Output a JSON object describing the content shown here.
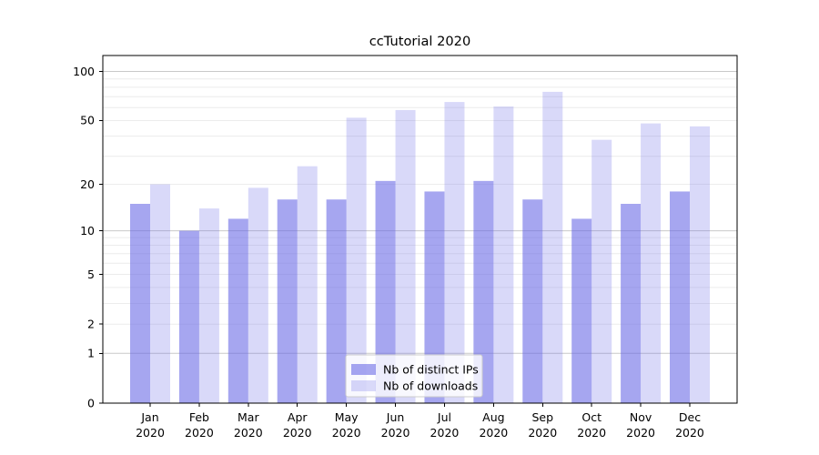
{
  "figure": {
    "title": "ccTutorial 2020"
  },
  "chart_data": {
    "type": "bar",
    "title": "ccTutorial 2020",
    "categories": [
      "Jan",
      "Feb",
      "Mar",
      "Apr",
      "May",
      "Jun",
      "Jul",
      "Aug",
      "Sep",
      "Oct",
      "Nov",
      "Dec"
    ],
    "category_sublabel": "2020",
    "series": [
      {
        "name": "Nb of distinct IPs",
        "color": "#6666e6",
        "opacity": 0.58,
        "values": [
          15,
          10,
          12,
          16,
          16,
          21,
          18,
          21,
          16,
          12,
          15,
          18
        ]
      },
      {
        "name": "Nb of downloads",
        "color": "#6666e6",
        "opacity": 0.25,
        "values": [
          20,
          14,
          19,
          26,
          52,
          58,
          65,
          61,
          75,
          38,
          48,
          46
        ]
      }
    ],
    "xlabel": "",
    "ylabel": "",
    "yscale": "log1p",
    "ylim": [
      0,
      125
    ],
    "ytick_labels": [
      "0",
      "1",
      "2",
      "5",
      "10",
      "20",
      "50",
      "100"
    ],
    "yticks": [
      0,
      1,
      2,
      5,
      10,
      20,
      50,
      100
    ],
    "grid": "horizontal",
    "grid_minor": [
      2,
      3,
      4,
      5,
      6,
      7,
      8,
      9,
      20,
      30,
      40,
      50,
      60,
      70,
      80,
      90
    ],
    "grid_major": [
      1,
      10,
      100
    ],
    "legend_position": "lower-center",
    "colors": {
      "bar_base": "#6666e6",
      "grid_minor": "#ececec",
      "grid_major": "#c9c9c9",
      "spine": "#000000",
      "legend_border": "#cccccc",
      "legend_bg": "#ffffff"
    }
  }
}
